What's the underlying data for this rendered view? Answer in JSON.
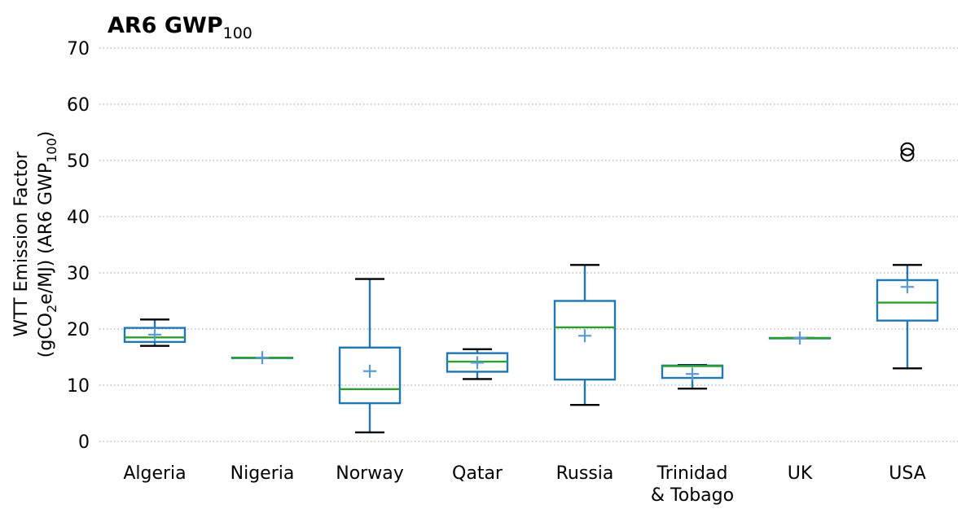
{
  "chart_data": {
    "type": "box",
    "title_main": "AR6 GWP",
    "title_sub": "100",
    "ylabel_line1": "WTT Emission Factor",
    "ylabel_line2_parts": [
      "(gCO",
      "2",
      "e/MJ) (AR6 GWP",
      "100",
      ")"
    ],
    "ylim": [
      0,
      70
    ],
    "yticks": [
      0,
      10,
      20,
      30,
      40,
      50,
      60,
      70
    ],
    "grid": "horizontal dotted",
    "colors": {
      "box": "#1f77b4",
      "median": "#2ca02c",
      "mean": "#5b9bd5",
      "whisker_cap": "#000000",
      "grid": "#b0b0b0"
    },
    "categories": [
      {
        "label_lines": [
          "Algeria"
        ],
        "whislo": 17.0,
        "q1": 17.7,
        "median": 18.5,
        "q3": 20.2,
        "whishi": 21.7,
        "mean": 19.0,
        "fliers": []
      },
      {
        "label_lines": [
          "Nigeria"
        ],
        "whislo": 14.9,
        "q1": 14.9,
        "median": 14.9,
        "q3": 14.9,
        "whishi": 14.9,
        "mean": 14.9,
        "fliers": []
      },
      {
        "label_lines": [
          "Norway"
        ],
        "whislo": 1.6,
        "q1": 6.8,
        "median": 9.3,
        "q3": 16.7,
        "whishi": 28.9,
        "mean": 12.5,
        "fliers": []
      },
      {
        "label_lines": [
          "Qatar"
        ],
        "whislo": 11.1,
        "q1": 12.4,
        "median": 14.2,
        "q3": 15.7,
        "whishi": 16.4,
        "mean": 14.0,
        "fliers": []
      },
      {
        "label_lines": [
          "Russia"
        ],
        "whislo": 6.5,
        "q1": 11.0,
        "median": 20.3,
        "q3": 25.0,
        "whishi": 31.4,
        "mean": 18.8,
        "fliers": []
      },
      {
        "label_lines": [
          "Trinidad",
          "& Tobago"
        ],
        "whislo": 9.4,
        "q1": 11.3,
        "median": 13.4,
        "q3": 13.5,
        "whishi": 13.6,
        "mean": 12.0,
        "fliers": []
      },
      {
        "label_lines": [
          "UK"
        ],
        "whislo": 18.4,
        "q1": 18.4,
        "median": 18.4,
        "q3": 18.4,
        "whishi": 18.4,
        "mean": 18.4,
        "fliers": []
      },
      {
        "label_lines": [
          "USA"
        ],
        "whislo": 13.0,
        "q1": 21.5,
        "median": 24.7,
        "q3": 28.7,
        "whishi": 31.4,
        "mean": 27.5,
        "fliers": [
          51.0,
          52.0
        ]
      }
    ]
  }
}
